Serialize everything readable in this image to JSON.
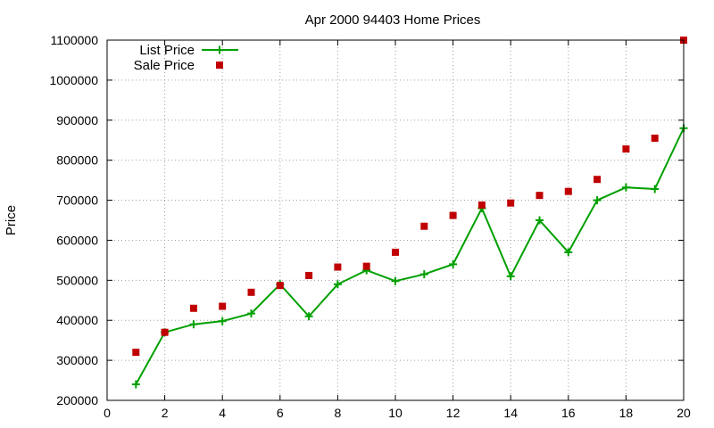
{
  "chart_data": {
    "type": "line",
    "title": "Apr 2000 94403 Home Prices",
    "xlabel": "",
    "ylabel": "Price",
    "xlim": [
      0,
      20
    ],
    "ylim": [
      200000,
      1100000
    ],
    "x_ticks": [
      0,
      2,
      4,
      6,
      8,
      10,
      12,
      14,
      16,
      18,
      20
    ],
    "y_ticks": [
      200000,
      300000,
      400000,
      500000,
      600000,
      700000,
      800000,
      900000,
      1000000,
      1100000
    ],
    "grid": true,
    "legend_position": "top-left",
    "series": [
      {
        "name": "List Price",
        "style": "linespoints",
        "marker": "plus",
        "color": "#00a000",
        "x": [
          1,
          2,
          3,
          4,
          5,
          6,
          7,
          8,
          9,
          10,
          11,
          12,
          13,
          14,
          15,
          16,
          17,
          18,
          19,
          20
        ],
        "y": [
          240000,
          370000,
          390000,
          398000,
          417000,
          490000,
          410000,
          490000,
          525000,
          498000,
          515000,
          540000,
          680000,
          510000,
          650000,
          570000,
          700000,
          732000,
          728000,
          880000
        ]
      },
      {
        "name": "Sale Price",
        "style": "points",
        "marker": "square",
        "color": "#c00000",
        "x": [
          1,
          2,
          3,
          4,
          5,
          6,
          7,
          8,
          9,
          10,
          11,
          12,
          13,
          14,
          15,
          16,
          17,
          18,
          19,
          20
        ],
        "y": [
          320000,
          370000,
          430000,
          435000,
          470000,
          487000,
          512000,
          533000,
          535000,
          570000,
          635000,
          662000,
          688000,
          693000,
          712000,
          722000,
          752000,
          828000,
          855000,
          1100000
        ]
      }
    ]
  }
}
